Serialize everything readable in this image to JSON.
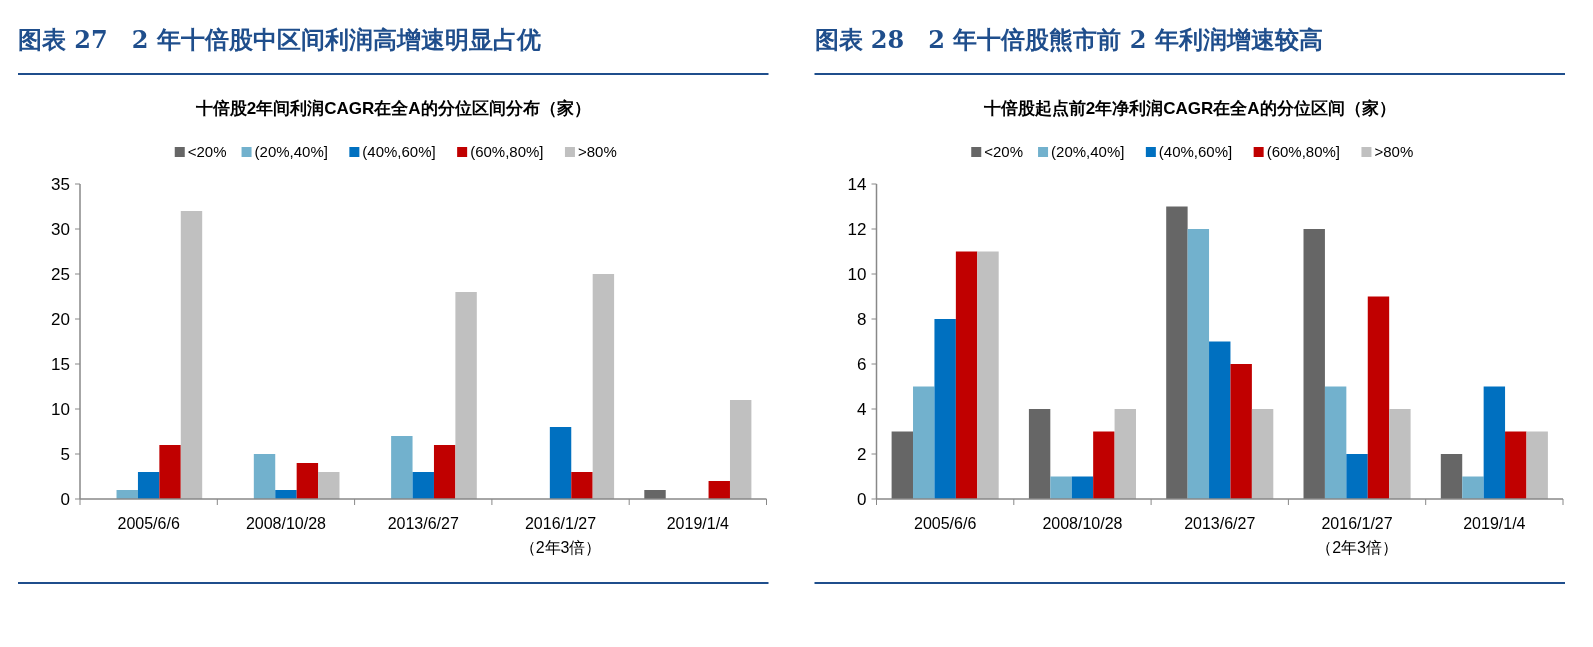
{
  "chart_data": [
    {
      "type": "bar",
      "subtitle": "图表 27　2 年十倍股中区间利润高增速明显占优",
      "title": "十倍股2年间利润CAGR在全A的分位区间分布（家）",
      "categories": [
        "2005/6/6",
        "2008/10/28",
        "2013/6/27",
        "2016/1/27\n（2年3倍）",
        "2019/1/4"
      ],
      "series": [
        {
          "name": "<20%",
          "color": "#666666",
          "values": [
            0,
            0,
            0,
            0,
            1
          ]
        },
        {
          "name": "(20%,40%]",
          "color": "#72b1cd",
          "values": [
            1,
            5,
            7,
            0,
            0
          ]
        },
        {
          "name": "(40%,60%]",
          "color": "#0070c0",
          "values": [
            3,
            1,
            3,
            8,
            0
          ]
        },
        {
          "name": "(60%,80%]",
          "color": "#c00000",
          "values": [
            6,
            4,
            6,
            3,
            2
          ]
        },
        {
          "name": ">80%",
          "color": "#c0c0c0",
          "values": [
            32,
            3,
            23,
            25,
            11
          ]
        }
      ],
      "ylim": [
        0,
        35
      ],
      "yticks": [
        0,
        5,
        10,
        15,
        20,
        25,
        30,
        35
      ],
      "grid": false,
      "legend": "top"
    },
    {
      "type": "bar",
      "subtitle": "图表 28　2 年十倍股熊市前 2 年利润增速较高",
      "title": "十倍股起点前2年净利润CAGR在全A的分位区间（家）",
      "categories": [
        "2005/6/6",
        "2008/10/28",
        "2013/6/27",
        "2016/1/27\n（2年3倍）",
        "2019/1/4"
      ],
      "series": [
        {
          "name": "<20%",
          "color": "#666666",
          "values": [
            3,
            4,
            13,
            12,
            2
          ]
        },
        {
          "name": "(20%,40%]",
          "color": "#72b1cd",
          "values": [
            5,
            1,
            12,
            5,
            1
          ]
        },
        {
          "name": "(40%,60%]",
          "color": "#0070c0",
          "values": [
            8,
            1,
            7,
            2,
            5
          ]
        },
        {
          "name": "(60%,80%]",
          "color": "#c00000",
          "values": [
            11,
            3,
            6,
            9,
            3
          ]
        },
        {
          "name": ">80%",
          "color": "#c0c0c0",
          "values": [
            11,
            4,
            4,
            4,
            3
          ]
        }
      ],
      "ylim": [
        0,
        14
      ],
      "yticks": [
        0,
        2,
        4,
        6,
        8,
        10,
        12,
        14
      ],
      "grid": false,
      "legend": "top"
    }
  ]
}
